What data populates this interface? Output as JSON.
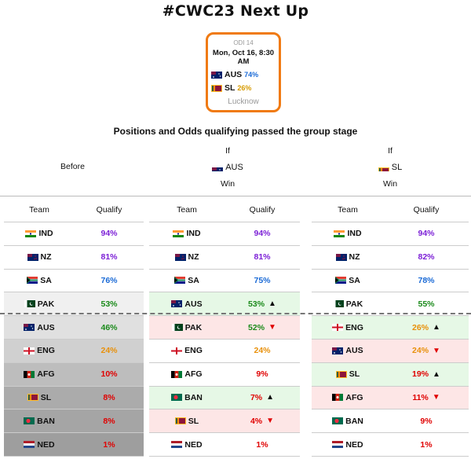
{
  "title": "#CWC23 Next Up",
  "match": {
    "match_id": "ODI 14",
    "datetime": "Mon, Oct 16, 8:30 AM",
    "team1": {
      "code": "AUS",
      "pct": "74%"
    },
    "team2": {
      "code": "SL",
      "pct": "26%"
    },
    "venue": "Lucknow"
  },
  "subtitle": "Positions and Odds qualifying passed the group stage",
  "headers": {
    "before": "Before",
    "if": "If",
    "win": "Win",
    "aus": "AUS",
    "sl": "SL",
    "team_col": "Team",
    "qualify_col": "Qualify"
  },
  "colors": {
    "accent_border": "#f07a12",
    "purple": "#7b1fd6",
    "blue": "#1a6ad6",
    "green": "#1a8a1a",
    "orange": "#e8900a",
    "red": "#e00000",
    "up_bg": "#e6f8e6",
    "down_bg": "#fde6e6"
  },
  "tables": {
    "before": [
      {
        "team": "IND",
        "pct": "94%",
        "color": "#7b1fd6",
        "bg": "#ffffff",
        "arrow": ""
      },
      {
        "team": "NZ",
        "pct": "81%",
        "color": "#7b1fd6",
        "bg": "#ffffff",
        "arrow": ""
      },
      {
        "team": "SA",
        "pct": "76%",
        "color": "#1a6ad6",
        "bg": "#ffffff",
        "arrow": ""
      },
      {
        "team": "PAK",
        "pct": "53%",
        "color": "#1a8a1a",
        "bg": "#f0f0f0",
        "arrow": ""
      },
      {
        "team": "AUS",
        "pct": "46%",
        "color": "#1a8a1a",
        "bg": "#e0e0e0",
        "arrow": ""
      },
      {
        "team": "ENG",
        "pct": "24%",
        "color": "#e8900a",
        "bg": "#d0d0d0",
        "arrow": ""
      },
      {
        "team": "AFG",
        "pct": "10%",
        "color": "#e00000",
        "bg": "#bdbdbd",
        "arrow": ""
      },
      {
        "team": "SL",
        "pct": "8%",
        "color": "#e00000",
        "bg": "#ababab",
        "arrow": ""
      },
      {
        "team": "BAN",
        "pct": "8%",
        "color": "#e00000",
        "bg": "#a5a5a5",
        "arrow": ""
      },
      {
        "team": "NED",
        "pct": "1%",
        "color": "#e00000",
        "bg": "#9e9e9e",
        "arrow": ""
      }
    ],
    "if_aus": [
      {
        "team": "IND",
        "pct": "94%",
        "color": "#7b1fd6",
        "bg": "#ffffff",
        "arrow": ""
      },
      {
        "team": "NZ",
        "pct": "81%",
        "color": "#7b1fd6",
        "bg": "#ffffff",
        "arrow": ""
      },
      {
        "team": "SA",
        "pct": "75%",
        "color": "#1a6ad6",
        "bg": "#ffffff",
        "arrow": ""
      },
      {
        "team": "AUS",
        "pct": "53%",
        "color": "#1a8a1a",
        "bg": "#e6f8e6",
        "arrow": "▲"
      },
      {
        "team": "PAK",
        "pct": "52%",
        "color": "#1a8a1a",
        "bg": "#fde6e6",
        "arrow": "▼"
      },
      {
        "team": "ENG",
        "pct": "24%",
        "color": "#e8900a",
        "bg": "#ffffff",
        "arrow": ""
      },
      {
        "team": "AFG",
        "pct": "9%",
        "color": "#e00000",
        "bg": "#ffffff",
        "arrow": ""
      },
      {
        "team": "BAN",
        "pct": "7%",
        "color": "#e00000",
        "bg": "#e6f8e6",
        "arrow": "▲"
      },
      {
        "team": "SL",
        "pct": "4%",
        "color": "#e00000",
        "bg": "#fde6e6",
        "arrow": "▼"
      },
      {
        "team": "NED",
        "pct": "1%",
        "color": "#e00000",
        "bg": "#ffffff",
        "arrow": ""
      }
    ],
    "if_sl": [
      {
        "team": "IND",
        "pct": "94%",
        "color": "#7b1fd6",
        "bg": "#ffffff",
        "arrow": ""
      },
      {
        "team": "NZ",
        "pct": "82%",
        "color": "#7b1fd6",
        "bg": "#ffffff",
        "arrow": ""
      },
      {
        "team": "SA",
        "pct": "78%",
        "color": "#1a6ad6",
        "bg": "#ffffff",
        "arrow": ""
      },
      {
        "team": "PAK",
        "pct": "55%",
        "color": "#1a8a1a",
        "bg": "#ffffff",
        "arrow": ""
      },
      {
        "team": "ENG",
        "pct": "26%",
        "color": "#e8900a",
        "bg": "#e6f8e6",
        "arrow": "▲"
      },
      {
        "team": "AUS",
        "pct": "24%",
        "color": "#e8900a",
        "bg": "#fde6e6",
        "arrow": "▼"
      },
      {
        "team": "SL",
        "pct": "19%",
        "color": "#e00000",
        "bg": "#e6f8e6",
        "arrow": "▲"
      },
      {
        "team": "AFG",
        "pct": "11%",
        "color": "#e00000",
        "bg": "#fde6e6",
        "arrow": "▼"
      },
      {
        "team": "BAN",
        "pct": "9%",
        "color": "#e00000",
        "bg": "#ffffff",
        "arrow": ""
      },
      {
        "team": "NED",
        "pct": "1%",
        "color": "#e00000",
        "bg": "#ffffff",
        "arrow": ""
      }
    ]
  }
}
